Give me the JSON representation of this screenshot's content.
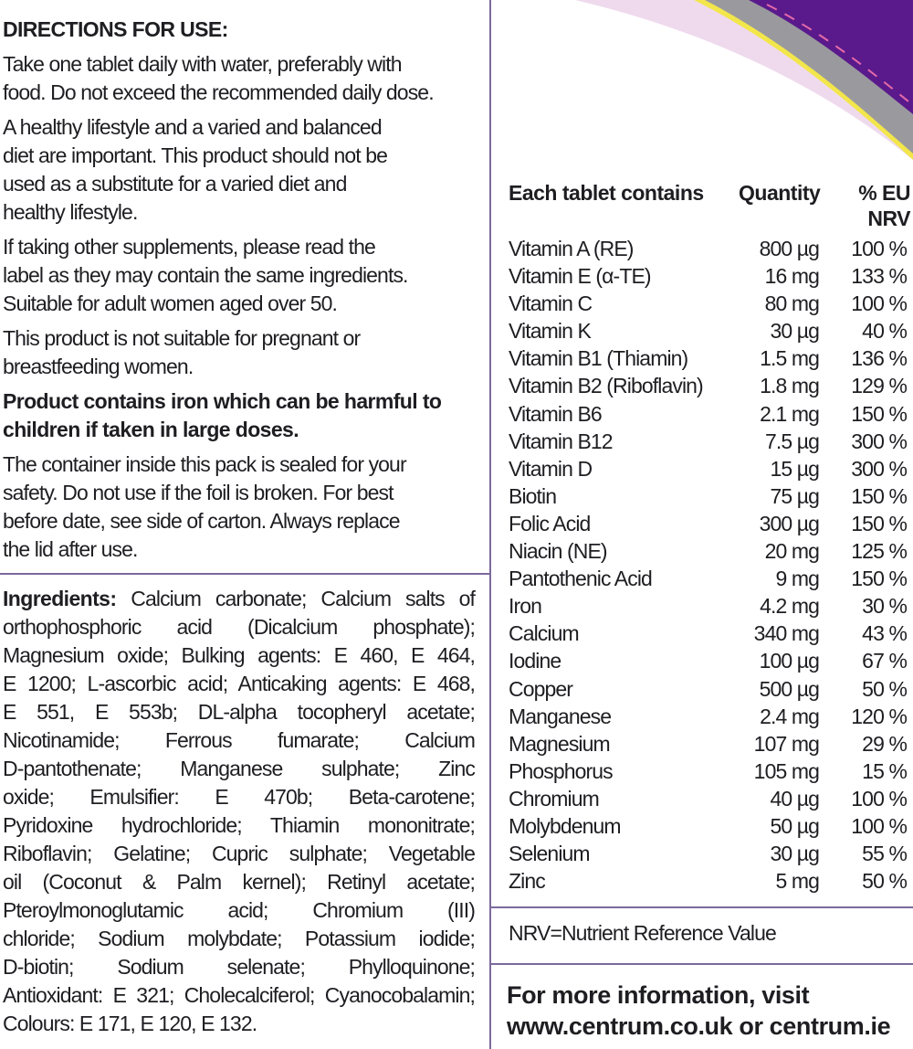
{
  "directions": {
    "heading": "DIRECTIONS FOR USE:",
    "paragraphs": [
      {
        "bold": false,
        "lines": [
          "Take one tablet daily with water, preferably with",
          "food. Do not exceed the recommended daily dose."
        ]
      },
      {
        "bold": false,
        "lines": [
          "A healthy lifestyle and a varied and balanced",
          "diet are important. This product should not be",
          "used as a substitute for a varied diet and",
          "healthy lifestyle."
        ]
      },
      {
        "bold": false,
        "lines": [
          "If taking other supplements, please read the",
          "label as they may contain the same ingredients."
        ]
      },
      {
        "bold": false,
        "nogap": true,
        "lines": [
          "Suitable for adult women aged over 50."
        ]
      },
      {
        "bold": false,
        "lines": [
          "This product is not suitable for pregnant or",
          "breastfeeding women."
        ]
      },
      {
        "bold": true,
        "lines": [
          "Product contains iron which can be harmful to",
          "children if taken in large doses."
        ]
      },
      {
        "bold": false,
        "lines": [
          "The container inside this pack is sealed for your",
          "safety. Do not use if the foil is broken. For best",
          "before date, see side of carton. Always replace",
          "the lid after use."
        ]
      }
    ]
  },
  "ingredients": {
    "label": "Ingredients:",
    "lines": [
      " Calcium carbonate; Calcium salts of",
      "orthophosphoric acid (Dicalcium phosphate);",
      "Magnesium oxide; Bulking agents: E 460, E 464,",
      "E 1200; L-ascorbic acid; Anticaking agents: E 468,",
      "E 551, E 553b; DL-alpha tocopheryl acetate;",
      "Nicotinamide; Ferrous fumarate; Calcium",
      "D-pantothenate; Manganese sulphate; Zinc",
      "oxide; Emulsifier: E 470b; Beta-carotene;",
      "Pyridoxine hydrochloride; Thiamin mononitrate;",
      "Riboflavin; Gelatine; Cupric sulphate; Vegetable",
      "oil (Coconut & Palm kernel); Retinyl acetate;",
      "Pteroylmonoglutamic acid; Chromium (III)",
      "chloride; Sodium molybdate; Potassium iodide;",
      "D-biotin; Sodium selenate; Phylloquinone;",
      "Antioxidant: E 321; Cholecalciferol; Cyanocobalamin;",
      "Colours: E 171, E 120, E 132."
    ]
  },
  "table": {
    "headers": {
      "name": "Each tablet contains",
      "quantity": "Quantity",
      "nrv_line1": "% EU",
      "nrv_line2": "NRV"
    },
    "rows": [
      {
        "name": "Vitamin A (RE)",
        "quantity": "800 µg",
        "nrv": "100 %"
      },
      {
        "name": "Vitamin E (α-TE)",
        "quantity": "16 mg",
        "nrv": "133 %"
      },
      {
        "name": "Vitamin C",
        "quantity": "80 mg",
        "nrv": "100 %"
      },
      {
        "name": "Vitamin K",
        "quantity": "30 µg",
        "nrv": "40 %"
      },
      {
        "name": "Vitamin B1 (Thiamin)",
        "quantity": "1.5 mg",
        "nrv": "136 %"
      },
      {
        "name": "Vitamin B2 (Riboflavin)",
        "quantity": "1.8 mg",
        "nrv": "129 %"
      },
      {
        "name": "Vitamin B6",
        "quantity": "2.1 mg",
        "nrv": "150 %"
      },
      {
        "name": "Vitamin B12",
        "quantity": "7.5 µg",
        "nrv": "300 %"
      },
      {
        "name": "Vitamin D",
        "quantity": "15 µg",
        "nrv": "300 %"
      },
      {
        "name": "Biotin",
        "quantity": "75 µg",
        "nrv": "150 %"
      },
      {
        "name": "Folic Acid",
        "quantity": "300 µg",
        "nrv": "150 %"
      },
      {
        "name": "Niacin (NE)",
        "quantity": "20 mg",
        "nrv": "125 %"
      },
      {
        "name": "Pantothenic Acid",
        "quantity": "9 mg",
        "nrv": "150 %"
      },
      {
        "name": "Iron",
        "quantity": "4.2 mg",
        "nrv": "30 %"
      },
      {
        "name": "Calcium",
        "quantity": "340 mg",
        "nrv": "43 %"
      },
      {
        "name": "Iodine",
        "quantity": "100 µg",
        "nrv": "67 %"
      },
      {
        "name": "Copper",
        "quantity": "500 µg",
        "nrv": "50 %"
      },
      {
        "name": "Manganese",
        "quantity": "2.4 mg",
        "nrv": "120 %"
      },
      {
        "name": "Magnesium",
        "quantity": "107 mg",
        "nrv": "29 %"
      },
      {
        "name": "Phosphorus",
        "quantity": "105 mg",
        "nrv": "15 %"
      },
      {
        "name": "Chromium",
        "quantity": "40 µg",
        "nrv": "100 %"
      },
      {
        "name": "Molybdenum",
        "quantity": "50 µg",
        "nrv": "100 %"
      },
      {
        "name": "Selenium",
        "quantity": "30 µg",
        "nrv": "55 %"
      },
      {
        "name": "Zinc",
        "quantity": "5 mg",
        "nrv": "50 %"
      }
    ]
  },
  "nrv_note": "NRV=Nutrient Reference Value",
  "more_info": {
    "line1": "For more information, visit",
    "line2": "www.centrum.co.uk or centrum.ie"
  },
  "colors": {
    "divider": "#7b6a9c",
    "swoosh_purple": "#5a1a8c",
    "swoosh_gray": "#9a9a9e",
    "swoosh_yellow": "#f2e64a",
    "swoosh_pink": "#ecd3ea"
  }
}
